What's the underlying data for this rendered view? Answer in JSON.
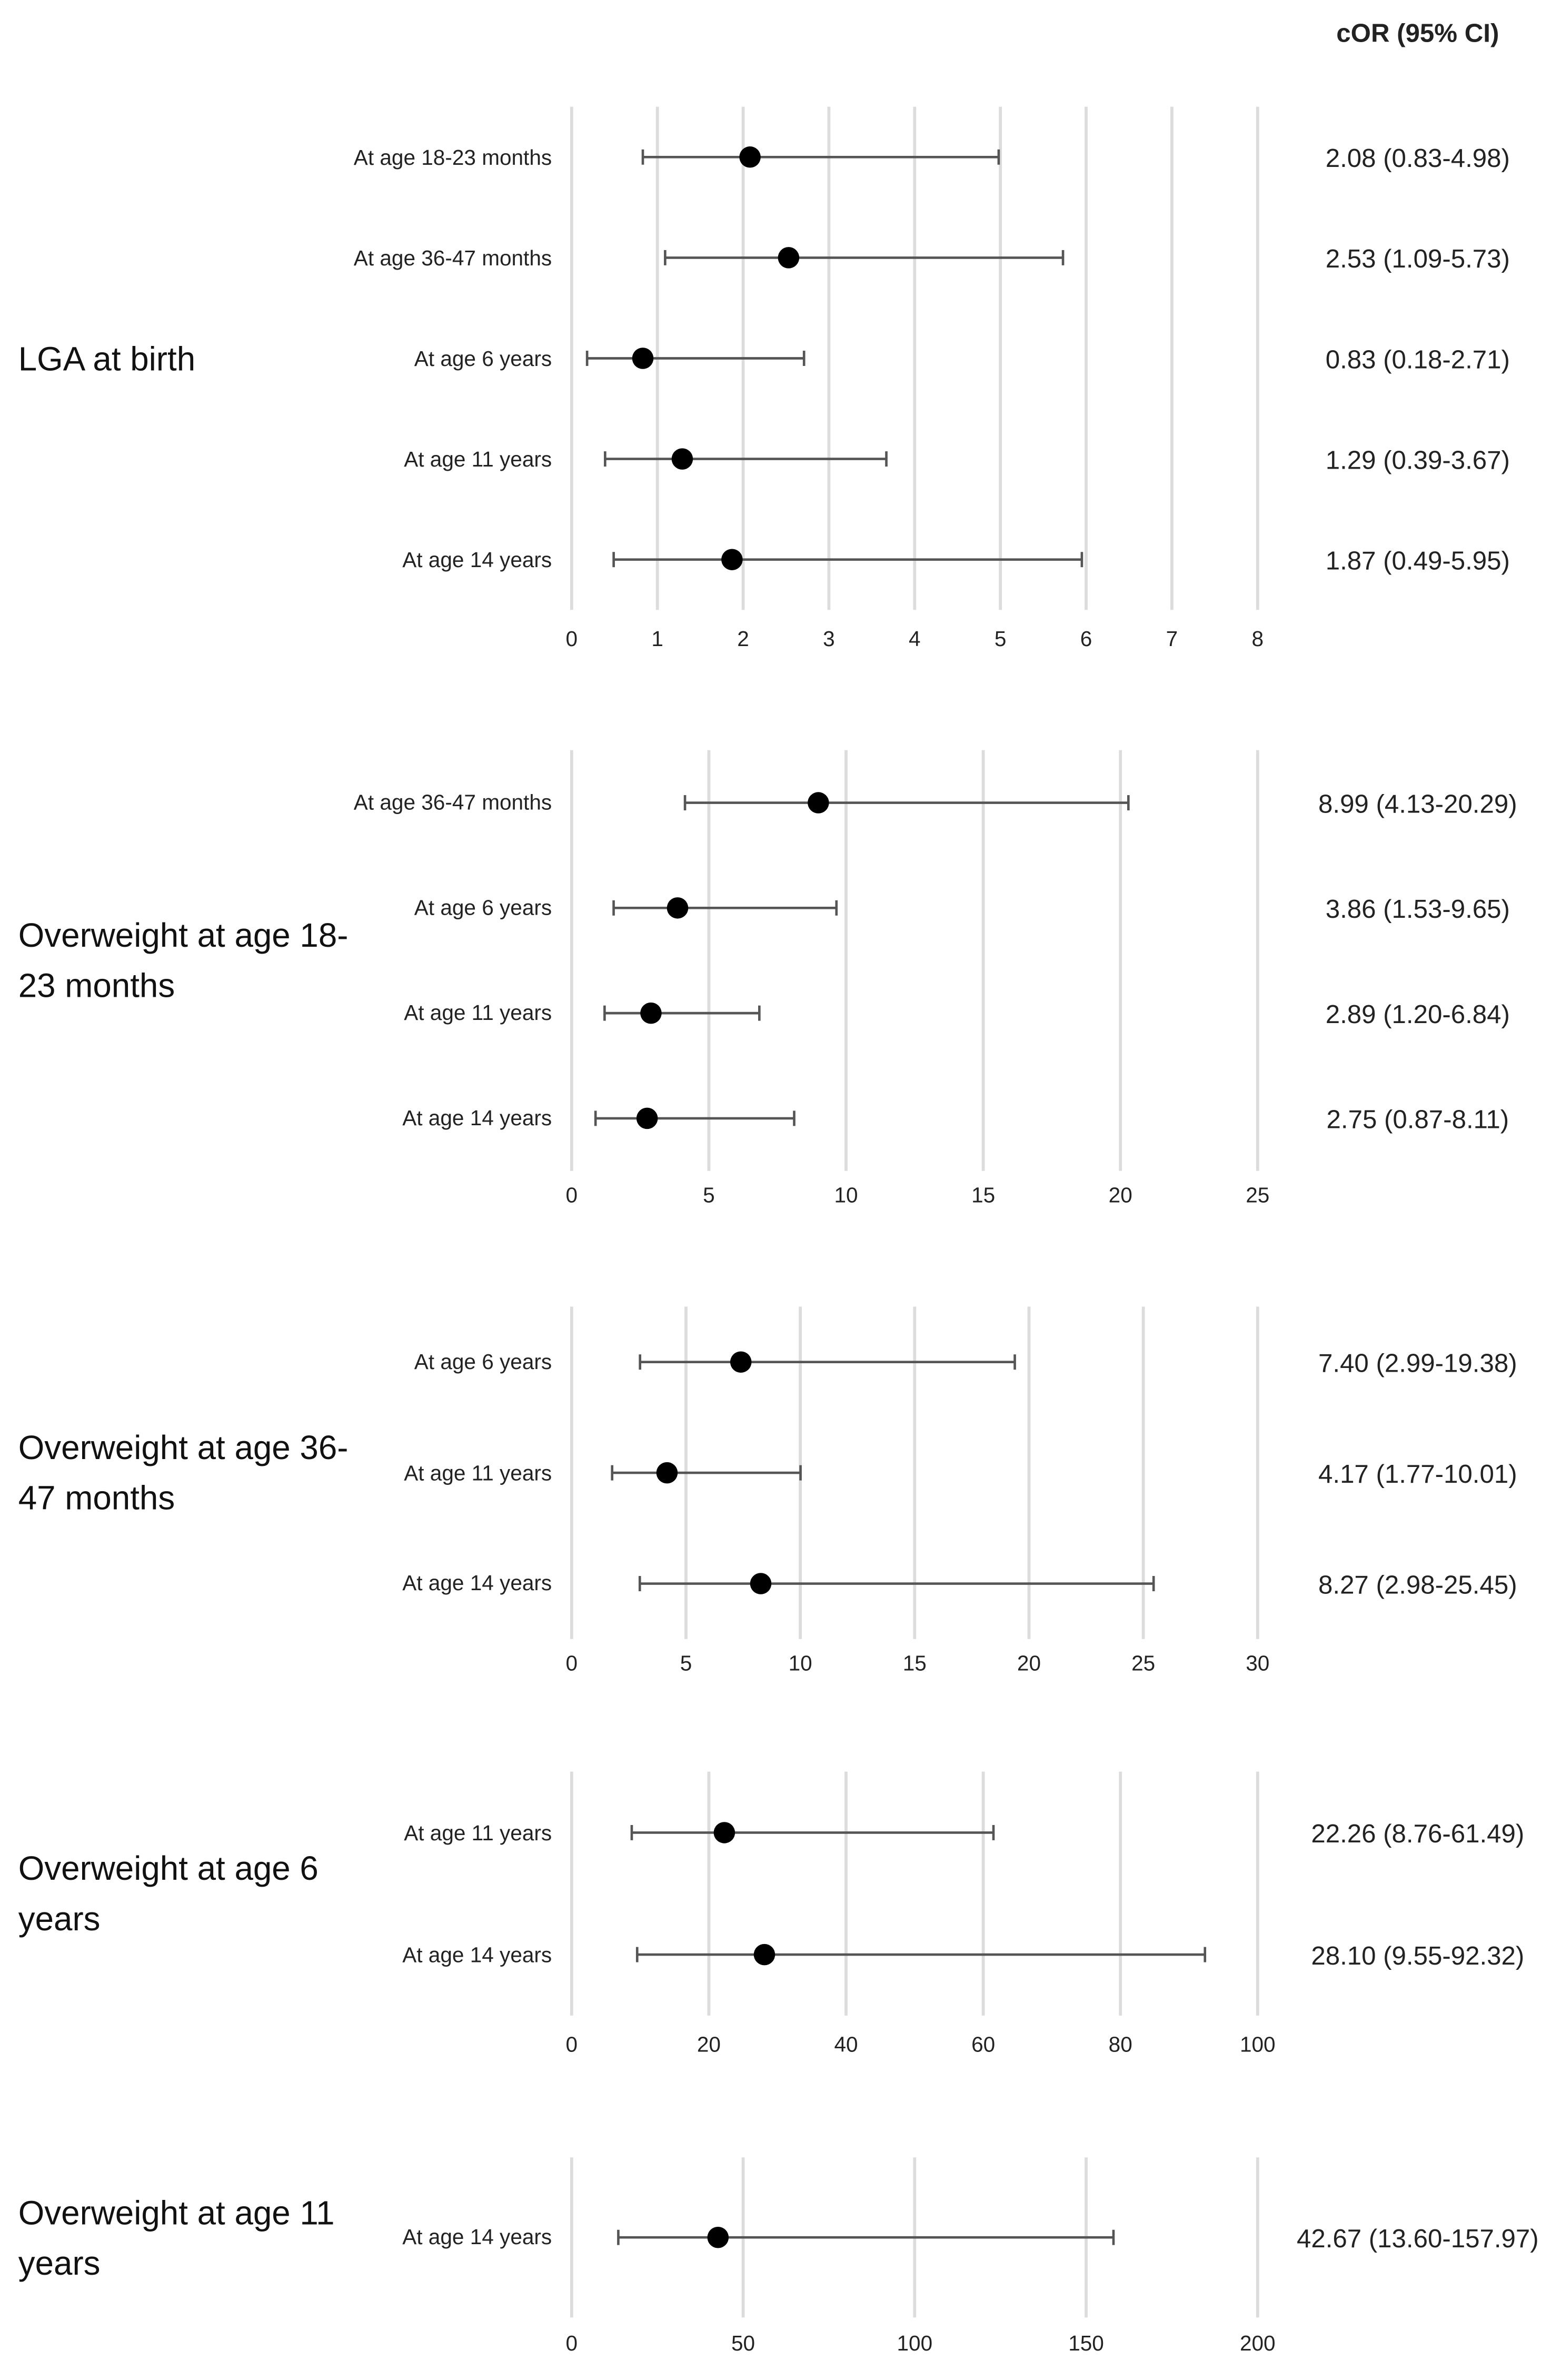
{
  "header": "cOR (95% CI)",
  "chart_data": [
    {
      "type": "forest",
      "title": "LGA at birth",
      "categories": [
        "At age 18-23 months",
        "At age 36-47 months",
        "At age 6 years",
        "At age 11 years",
        "At age 14 years"
      ],
      "values": [
        2.08,
        2.53,
        0.83,
        1.29,
        1.87
      ],
      "lower": [
        0.83,
        1.09,
        0.18,
        0.39,
        0.49
      ],
      "upper": [
        4.98,
        5.73,
        2.71,
        3.67,
        5.95
      ],
      "value_labels": [
        "2.08 (0.83-4.98)",
        "2.53 (1.09-5.73)",
        "0.83 (0.18-2.71)",
        "1.29 (0.39-3.67)",
        "1.87 (0.49-5.95)"
      ],
      "xlim": [
        0,
        8
      ],
      "xticks": [
        0,
        1,
        2,
        3,
        4,
        5,
        6,
        7,
        8
      ],
      "grid": true,
      "color": "#000000"
    },
    {
      "type": "forest",
      "title": "Overweight at age 18-23 months",
      "categories": [
        "At age 36-47 months",
        "At age 6 years",
        "At age 11 years",
        "At age 14 years"
      ],
      "values": [
        8.99,
        3.86,
        2.89,
        2.75
      ],
      "lower": [
        4.13,
        1.53,
        1.2,
        0.87
      ],
      "upper": [
        20.29,
        9.65,
        6.84,
        8.11
      ],
      "value_labels": [
        "8.99 (4.13-20.29)",
        "3.86 (1.53-9.65)",
        "2.89 (1.20-6.84)",
        "2.75 (0.87-8.11)"
      ],
      "xlim": [
        0,
        25
      ],
      "xticks": [
        0,
        5,
        10,
        15,
        20,
        25
      ],
      "grid": true,
      "color": "#000000"
    },
    {
      "type": "forest",
      "title": "Overweight at age 36-47 months",
      "categories": [
        "At age 6 years",
        "At age 11 years",
        "At age 14 years"
      ],
      "values": [
        7.4,
        4.17,
        8.27
      ],
      "lower": [
        2.99,
        1.77,
        2.98
      ],
      "upper": [
        19.38,
        10.01,
        25.45
      ],
      "value_labels": [
        "7.40 (2.99-19.38)",
        "4.17 (1.77-10.01)",
        "8.27 (2.98-25.45)"
      ],
      "xlim": [
        0,
        30
      ],
      "xticks": [
        0,
        5,
        10,
        15,
        20,
        25,
        30
      ],
      "grid": true,
      "color": "#000000"
    },
    {
      "type": "forest",
      "title": "Overweight at age 6 years",
      "categories": [
        "At age 11 years",
        "At age 14 years"
      ],
      "values": [
        22.26,
        28.1
      ],
      "lower": [
        8.76,
        9.55
      ],
      "upper": [
        61.49,
        92.32
      ],
      "value_labels": [
        "22.26 (8.76-61.49)",
        "28.10 (9.55-92.32)"
      ],
      "xlim": [
        0,
        100
      ],
      "xticks": [
        0,
        20,
        40,
        60,
        80,
        100
      ],
      "grid": true,
      "color": "#000000"
    },
    {
      "type": "forest",
      "title": "Overweight at age 11 years",
      "categories": [
        "At age 14 years"
      ],
      "values": [
        42.67
      ],
      "lower": [
        13.6
      ],
      "upper": [
        157.97
      ],
      "value_labels": [
        "42.67 (13.60-157.97)"
      ],
      "xlim": [
        0,
        200
      ],
      "xticks": [
        0,
        50,
        100,
        150,
        200
      ],
      "grid": true,
      "color": "#000000"
    }
  ]
}
